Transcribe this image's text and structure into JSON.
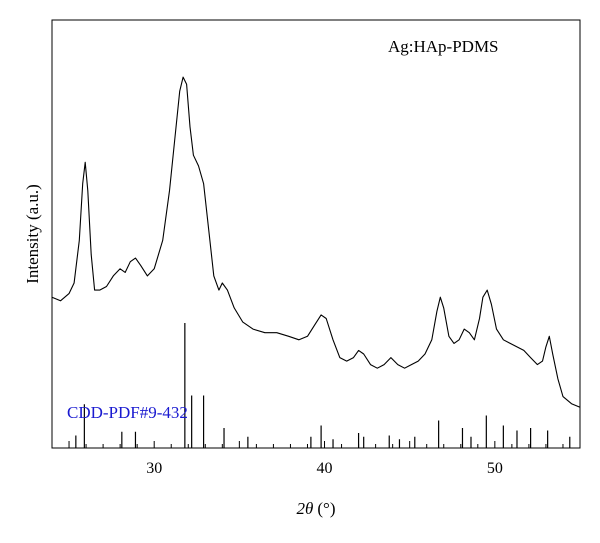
{
  "chart_data": {
    "type": "line",
    "title": "",
    "xlabel_var": "2θ",
    "xlabel_unit": "(°)",
    "ylabel": "Intensity (a.u.)",
    "xlim": [
      24,
      55
    ],
    "ylim": [
      0,
      100
    ],
    "xticks": [
      30,
      40,
      50
    ],
    "minor_xtick_step": 1,
    "y_ticks_shown": false,
    "grid": false,
    "line_color": "#000000",
    "reference_color": "#1a1ad0",
    "series": [
      {
        "name": "Ag:HAp-PDMS",
        "x": [
          24.0,
          24.5,
          25.0,
          25.3,
          25.6,
          25.8,
          25.95,
          26.1,
          26.3,
          26.5,
          26.8,
          27.2,
          27.6,
          28.0,
          28.3,
          28.6,
          28.9,
          29.2,
          29.6,
          30.0,
          30.5,
          30.9,
          31.2,
          31.5,
          31.7,
          31.9,
          32.1,
          32.3,
          32.6,
          32.9,
          33.2,
          33.5,
          33.8,
          34.0,
          34.3,
          34.7,
          35.2,
          35.8,
          36.5,
          37.2,
          37.9,
          38.5,
          39.0,
          39.4,
          39.8,
          40.1,
          40.5,
          40.9,
          41.3,
          41.7,
          42.0,
          42.3,
          42.7,
          43.1,
          43.5,
          43.9,
          44.3,
          44.7,
          45.1,
          45.5,
          45.9,
          46.3,
          46.6,
          46.8,
          47.0,
          47.3,
          47.6,
          47.9,
          48.2,
          48.5,
          48.8,
          49.1,
          49.3,
          49.55,
          49.8,
          50.1,
          50.5,
          50.9,
          51.3,
          51.7,
          52.1,
          52.5,
          52.8,
          53.0,
          53.2,
          53.4,
          53.7,
          54.0,
          54.5,
          55.0
        ],
        "y": [
          36,
          35,
          37,
          40,
          52,
          68,
          74,
          66,
          48,
          38,
          38,
          39,
          42,
          44,
          43,
          46,
          47,
          45,
          42,
          44,
          52,
          66,
          80,
          94,
          98,
          96,
          84,
          76,
          73,
          68,
          55,
          42,
          38,
          40,
          38,
          33,
          29,
          27,
          26,
          26,
          25,
          24,
          25,
          28,
          31,
          30,
          24,
          19,
          18,
          19,
          21,
          20,
          17,
          16,
          17,
          19,
          17,
          16,
          17,
          18,
          20,
          24,
          32,
          36,
          33,
          25,
          23,
          24,
          27,
          26,
          24,
          30,
          36,
          38,
          34,
          27,
          24,
          23,
          22,
          21,
          19,
          17,
          18,
          22,
          25,
          20,
          13,
          8,
          6,
          5
        ]
      }
    ],
    "reference_pattern": {
      "name": "CDD-PDF#9-432",
      "x": [
        25.4,
        25.9,
        28.1,
        28.9,
        31.8,
        32.2,
        32.9,
        34.1,
        35.5,
        39.2,
        39.8,
        40.5,
        42.0,
        42.3,
        43.8,
        44.4,
        45.3,
        46.7,
        48.1,
        48.6,
        49.5,
        50.5,
        51.3,
        52.1,
        53.1,
        54.4
      ],
      "intensity": [
        10,
        35,
        13,
        13,
        100,
        42,
        42,
        16,
        9,
        9,
        18,
        7,
        12,
        9,
        10,
        7,
        9,
        22,
        16,
        9,
        26,
        18,
        14,
        16,
        14,
        9
      ]
    }
  }
}
